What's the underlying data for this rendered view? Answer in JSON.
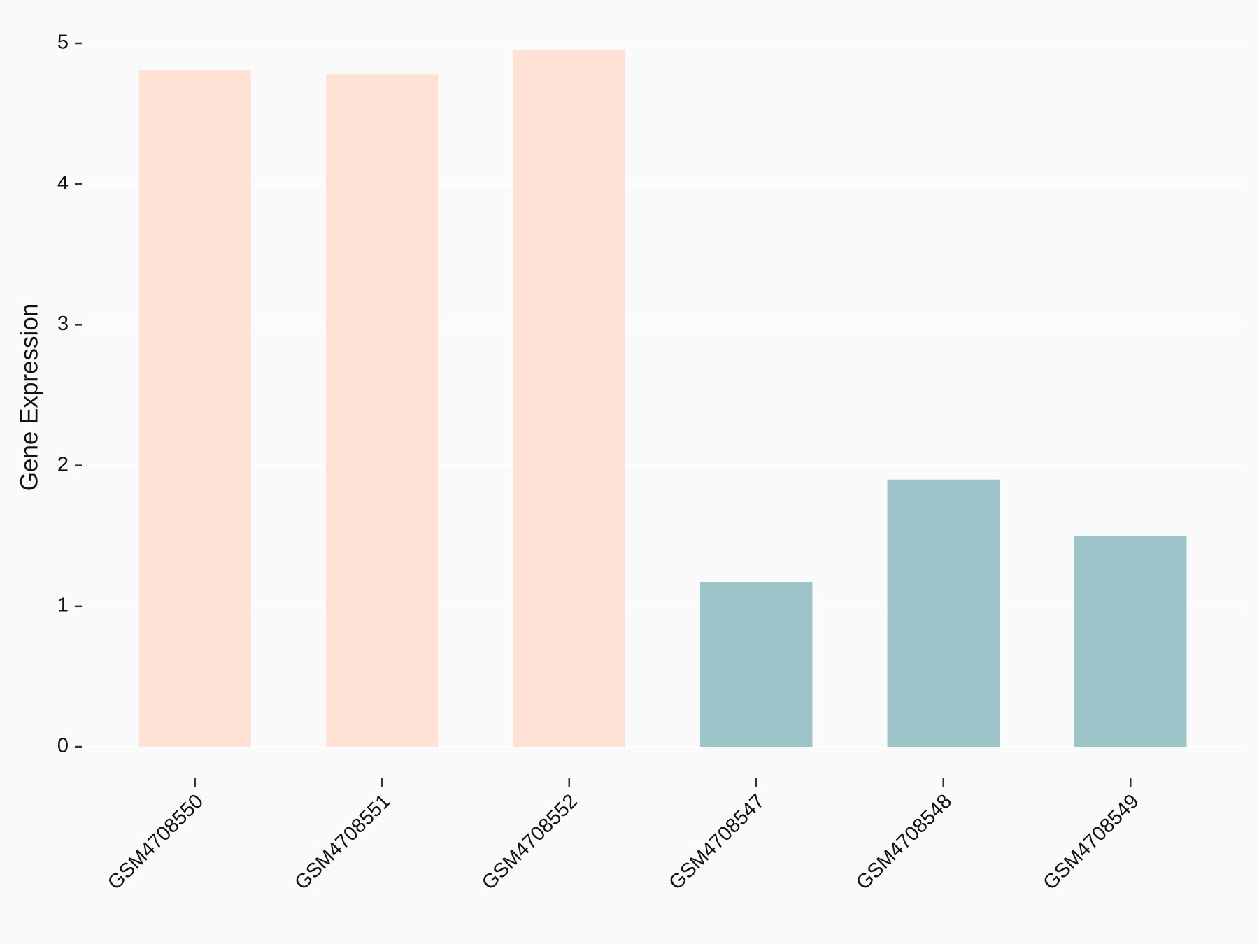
{
  "chart_data": {
    "type": "bar",
    "y_label": "Gene Expression",
    "categories": [
      "GSM4708550",
      "GSM4708551",
      "GSM4708552",
      "GSM4708547",
      "GSM4708548",
      "GSM4708549"
    ],
    "values": [
      4.81,
      4.78,
      4.95,
      1.17,
      1.9,
      1.5
    ],
    "colors": [
      "#ffe1d6",
      "#ffe1d6",
      "#ffe1d6",
      "#9dc4c8",
      "#9dc4c8",
      "#9dc4c8"
    ],
    "ylim": [
      0,
      5
    ],
    "yticks": [
      0,
      1,
      2,
      3,
      4,
      5
    ],
    "grid": true
  }
}
